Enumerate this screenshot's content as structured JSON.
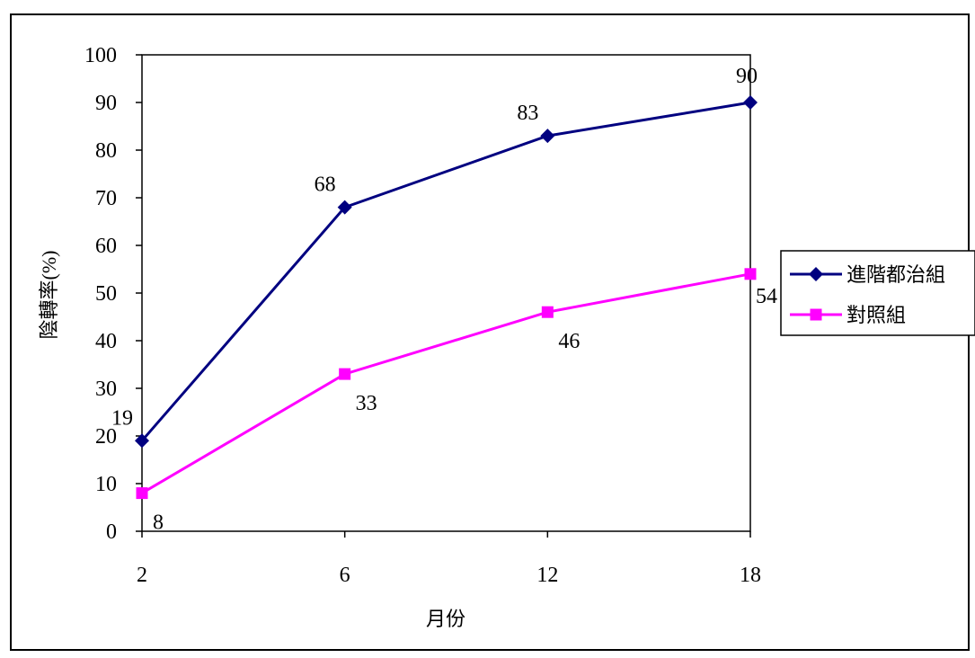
{
  "chart_data": {
    "type": "line",
    "title": "",
    "xlabel": "月份",
    "ylabel": "陰轉率(%)",
    "x": [
      2,
      6,
      12,
      18
    ],
    "ylim": [
      0,
      100
    ],
    "yticks": [
      0,
      10,
      20,
      30,
      40,
      50,
      60,
      70,
      80,
      90,
      100
    ],
    "grid": false,
    "legend_position": "right",
    "series": [
      {
        "name": "進階都治組",
        "values": [
          19,
          68,
          83,
          90
        ],
        "color": "#000080",
        "marker": "diamond"
      },
      {
        "name": "對照組",
        "values": [
          8,
          33,
          46,
          54
        ],
        "color": "#ff00ff",
        "marker": "square"
      }
    ]
  }
}
